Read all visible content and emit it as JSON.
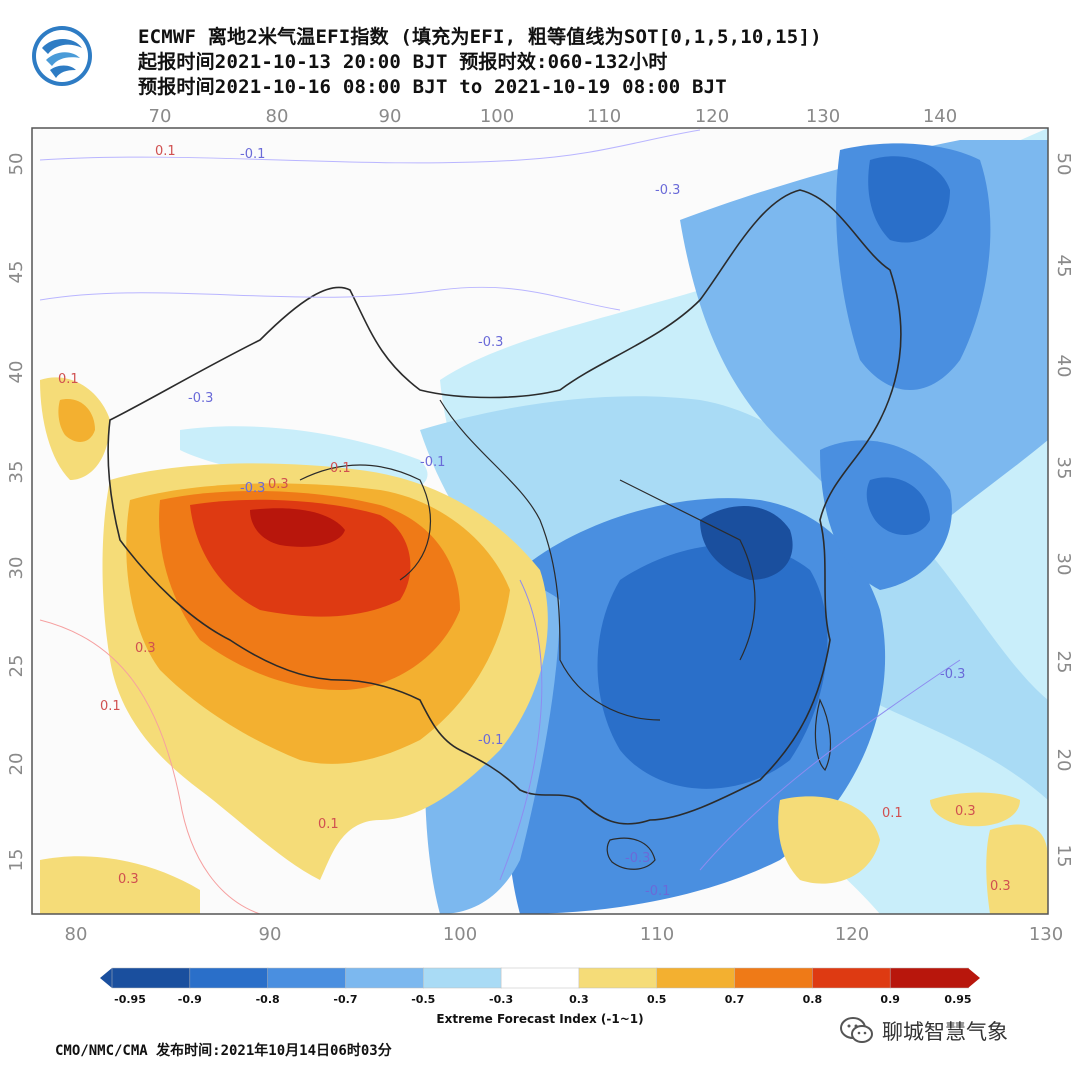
{
  "header": {
    "line1": "ECMWF 离地2米气温EFI指数 (填充为EFI, 粗等值线为SOT[0,1,5,10,15])",
    "line2": "起报时间2021-10-13 20:00 BJT 预报时效:060-132小时",
    "line3": "预报时间2021-10-16 08:00 BJT to 2021-10-19 08:00 BJT"
  },
  "map": {
    "top_lon_ticks": [
      "70",
      "80",
      "90",
      "100",
      "110",
      "120",
      "130",
      "140"
    ],
    "bottom_lon_ticks": [
      "80",
      "90",
      "100",
      "110",
      "120",
      "130"
    ],
    "lat_ticks": [
      "50",
      "45",
      "40",
      "35",
      "30",
      "25",
      "20",
      "15"
    ],
    "isoline_labels": [
      "0.1",
      "-0.1",
      "-0.3",
      "-0.3",
      "0.1",
      "-0.3",
      "-0.1",
      "0.3",
      "0.1",
      "-0.3",
      "-0.3",
      "0.1",
      "0.3",
      "0.3",
      "-0.3",
      "-0.1",
      "0.1",
      "0.3",
      "0.3",
      "0.1",
      "-0.1"
    ]
  },
  "colorbar": {
    "title": "Extreme Forecast Index (-1~1)",
    "labels": [
      "-0.95",
      "-0.9",
      "-0.8",
      "-0.7",
      "-0.5",
      "-0.3",
      "0.3",
      "0.5",
      "0.7",
      "0.8",
      "0.9",
      "0.95"
    ],
    "colors": [
      "#1a4f9e",
      "#2a6fc9",
      "#4a8fe0",
      "#7cb8ef",
      "#a9dbf5",
      "#ffffff",
      "#f5dc78",
      "#f3b030",
      "#ef7a17",
      "#de3a12",
      "#b8160c"
    ]
  },
  "footer": {
    "publisher": "CMO/NMC/CMA 发布时间:2021年10月14日06时03分"
  },
  "watermark": {
    "text": "聊城智慧气象",
    "icon": "wechat-icon"
  }
}
